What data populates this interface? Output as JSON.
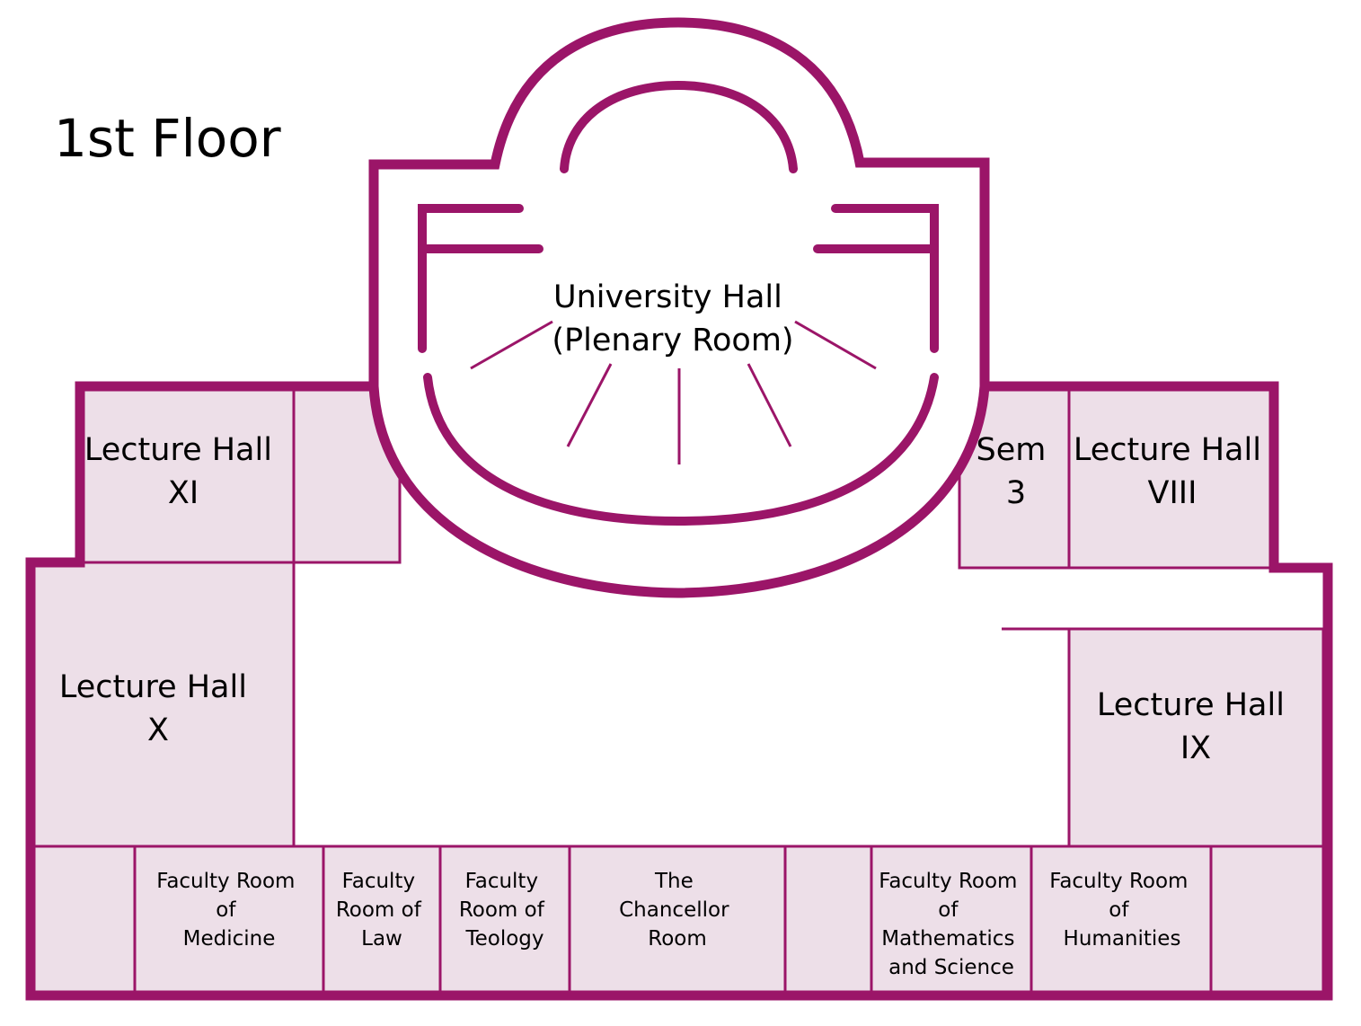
{
  "floor_title": "1st Floor",
  "colors": {
    "wall": "#9b1568",
    "room_fill": "#eddfe8",
    "background": "#ffffff"
  },
  "rooms": {
    "university_hall": [
      "University Hall",
      "(Plenary Room)"
    ],
    "lecture_hall_xi": [
      "Lecture Hall",
      "XI"
    ],
    "lecture_hall_x": [
      "Lecture Hall",
      "X"
    ],
    "sem_3": [
      "Sem",
      "3"
    ],
    "lecture_hall_viii": [
      "Lecture Hall",
      "VIII"
    ],
    "lecture_hall_ix": [
      "Lecture Hall",
      "IX"
    ],
    "faculty_medicine": [
      "Faculty Room",
      "of",
      "Medicine"
    ],
    "faculty_law": [
      "Faculty",
      "Room of",
      "Law"
    ],
    "faculty_teology": [
      "Faculty",
      "Room of",
      "Teology"
    ],
    "chancellor": [
      "The",
      "Chancellor",
      "Room"
    ],
    "faculty_math": [
      "Faculty Room",
      "of",
      "Mathematics",
      "and Science"
    ],
    "faculty_humanities": [
      "Faculty Room",
      "of",
      "Humanities"
    ]
  }
}
